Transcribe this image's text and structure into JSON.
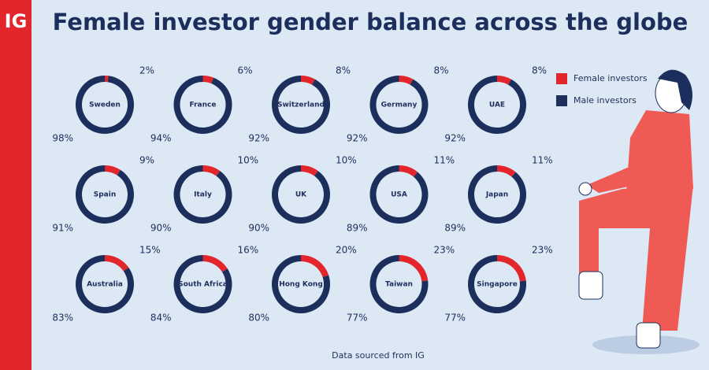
{
  "logo": "IG",
  "chart_data": {
    "type": "donut",
    "title": "Female investor gender balance across the globe",
    "source": "Data sourced from IG",
    "legend": "top-right",
    "categories": [
      "Sweden",
      "France",
      "Switzerland",
      "Germany",
      "UAE",
      "Spain",
      "Italy",
      "UK",
      "USA",
      "Japan",
      "Australia",
      "South Africa",
      "Hong Kong",
      "Taiwan",
      "Singapore"
    ],
    "series": [
      {
        "name": "Female investors",
        "color": "#e3262c",
        "values": [
          2,
          6,
          8,
          8,
          8,
          9,
          10,
          10,
          11,
          11,
          15,
          16,
          20,
          23,
          23
        ],
        "value_labels": [
          "2%",
          "6%",
          "8%",
          "8%",
          "8%",
          "9%",
          "10%",
          "10%",
          "11%",
          "11%",
          "15%",
          "16%",
          "20%",
          "23%",
          "23%"
        ]
      },
      {
        "name": "Male investors",
        "color": "#1c2f5c",
        "values": [
          98,
          94,
          92,
          92,
          92,
          91,
          90,
          90,
          89,
          89,
          83,
          84,
          80,
          77,
          77
        ],
        "value_labels": [
          "98%",
          "94%",
          "92%",
          "92%",
          "92%",
          "91%",
          "90%",
          "90%",
          "89%",
          "89%",
          "83%",
          "84%",
          "80%",
          "77%",
          "77%"
        ]
      }
    ]
  }
}
